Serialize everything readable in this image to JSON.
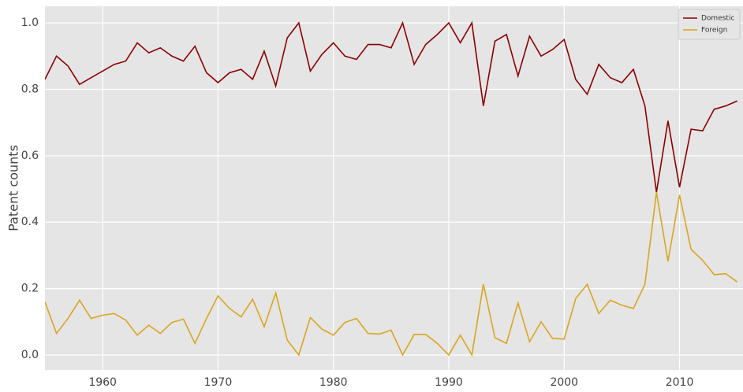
{
  "chart_data": {
    "type": "line",
    "ylabel": "Patent counts",
    "x": [
      1955,
      1956,
      1957,
      1958,
      1959,
      1960,
      1961,
      1962,
      1963,
      1964,
      1965,
      1966,
      1967,
      1968,
      1969,
      1970,
      1971,
      1972,
      1973,
      1974,
      1975,
      1976,
      1977,
      1978,
      1979,
      1980,
      1981,
      1982,
      1983,
      1984,
      1985,
      1986,
      1987,
      1988,
      1989,
      1990,
      1991,
      1992,
      1993,
      1994,
      1995,
      1996,
      1997,
      1998,
      1999,
      2000,
      2001,
      2002,
      2003,
      2004,
      2005,
      2006,
      2007,
      2008,
      2009,
      2010,
      2011,
      2012,
      2013,
      2014,
      2015
    ],
    "series": [
      {
        "name": "Domestic",
        "color": "#8b0000",
        "values": [
          0.83,
          0.9,
          0.87,
          0.815,
          0.835,
          0.855,
          0.875,
          0.885,
          0.94,
          0.91,
          0.925,
          0.9,
          0.885,
          0.93,
          0.85,
          0.82,
          0.85,
          0.86,
          0.83,
          0.915,
          0.81,
          0.955,
          1.0,
          0.855,
          0.905,
          0.94,
          0.9,
          0.89,
          0.935,
          0.935,
          0.925,
          1.0,
          0.875,
          0.935,
          0.965,
          1.0,
          0.94,
          1.0,
          0.75,
          0.945,
          0.965,
          0.84,
          0.96,
          0.9,
          0.92,
          0.95,
          0.83,
          0.785,
          0.875,
          0.835,
          0.82,
          0.86,
          0.75,
          0.49,
          0.705,
          0.505,
          0.68,
          0.675,
          0.74,
          0.75,
          0.765
        ]
      },
      {
        "name": "Foreign",
        "color": "#daa520",
        "values": [
          0.16,
          0.065,
          0.11,
          0.165,
          0.11,
          0.12,
          0.125,
          0.105,
          0.06,
          0.09,
          0.065,
          0.098,
          0.108,
          0.035,
          0.11,
          0.178,
          0.14,
          0.115,
          0.168,
          0.085,
          0.187,
          0.045,
          0.0,
          0.113,
          0.078,
          0.06,
          0.098,
          0.11,
          0.065,
          0.063,
          0.075,
          0.0,
          0.062,
          0.062,
          0.035,
          0.0,
          0.06,
          0.0,
          0.213,
          0.052,
          0.035,
          0.157,
          0.04,
          0.1,
          0.05,
          0.048,
          0.17,
          0.213,
          0.125,
          0.165,
          0.15,
          0.14,
          0.213,
          0.49,
          0.282,
          0.482,
          0.318,
          0.285,
          0.242,
          0.245,
          0.22
        ]
      }
    ],
    "xlim": [
      1955,
      2015.5
    ],
    "xticks": [
      1960,
      1970,
      1980,
      1990,
      2000,
      2010
    ],
    "ylim": [
      -0.045,
      1.05
    ],
    "yticks": [
      {
        "value": 0,
        "label": "0.0"
      },
      {
        "value": 0.2,
        "label": "0.2"
      },
      {
        "value": 0.4,
        "label": "0.4"
      },
      {
        "value": 0.6,
        "label": "0.6"
      },
      {
        "value": 0.8,
        "label": "0.8"
      },
      {
        "value": 1,
        "label": "1.0"
      }
    ],
    "grid": true,
    "legend": "upper right"
  }
}
